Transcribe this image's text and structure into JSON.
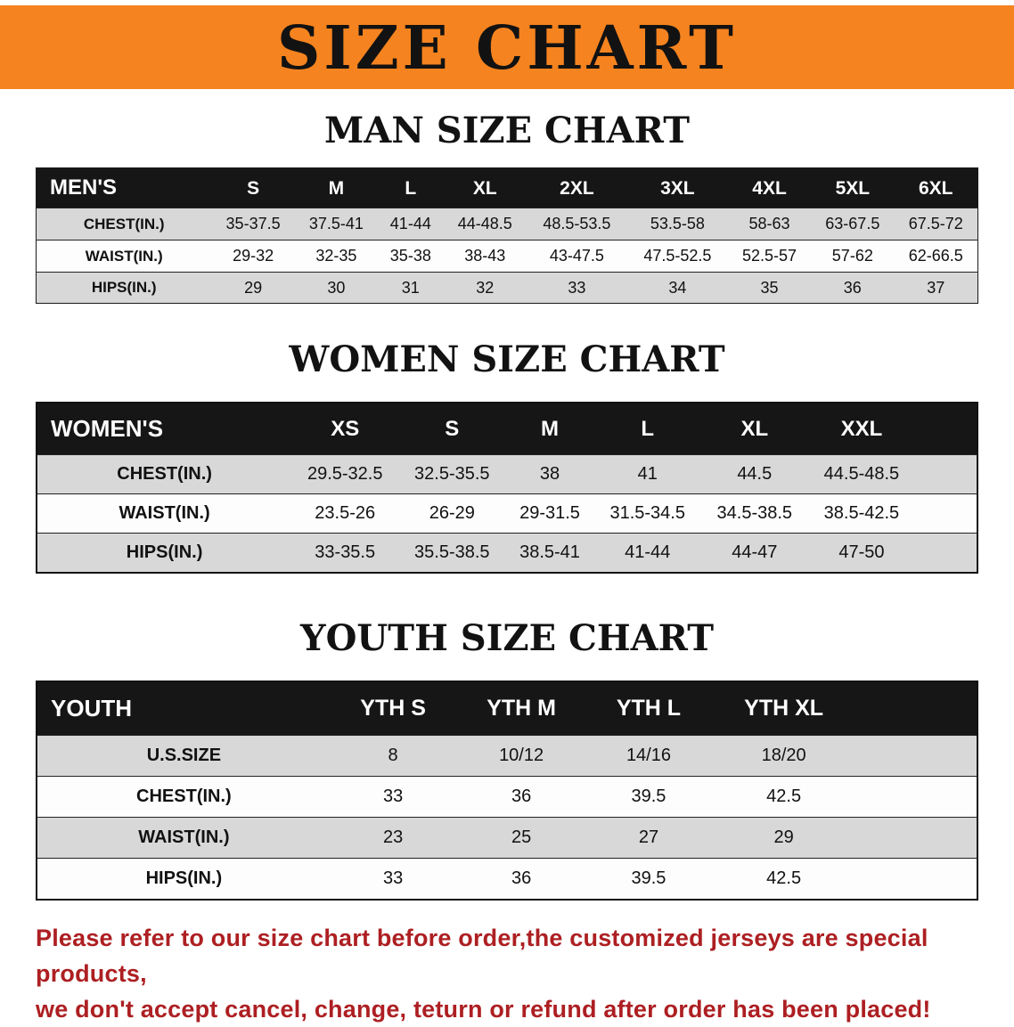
{
  "banner": {
    "title": "SIZE CHART"
  },
  "sections": [
    {
      "id": "men",
      "heading": "MAN SIZE CHART",
      "columns": [
        "MEN'S",
        "S",
        "M",
        "L",
        "XL",
        "2XL",
        "3XL",
        "4XL",
        "5XL",
        "6XL"
      ],
      "rows": [
        [
          "CHEST(IN.)",
          "35-37.5",
          "37.5-41",
          "41-44",
          "44-48.5",
          "48.5-53.5",
          "53.5-58",
          "58-63",
          "63-67.5",
          "67.5-72"
        ],
        [
          "WAIST(IN.)",
          "29-32",
          "32-35",
          "35-38",
          "38-43",
          "43-47.5",
          "47.5-52.5",
          "52.5-57",
          "57-62",
          "62-66.5"
        ],
        [
          "HIPS(IN.)",
          "29",
          "30",
          "31",
          "32",
          "33",
          "34",
          "35",
          "36",
          "37"
        ]
      ]
    },
    {
      "id": "women",
      "heading": "WOMEN SIZE CHART",
      "columns": [
        "WOMEN'S",
        "XS",
        "S",
        "M",
        "L",
        "XL",
        "XXL"
      ],
      "rows": [
        [
          "CHEST(IN.)",
          "29.5-32.5",
          "32.5-35.5",
          "38",
          "41",
          "44.5",
          "44.5-48.5"
        ],
        [
          "WAIST(IN.)",
          "23.5-26",
          "26-29",
          "29-31.5",
          "31.5-34.5",
          "34.5-38.5",
          "38.5-42.5"
        ],
        [
          "HIPS(IN.)",
          "33-35.5",
          "35.5-38.5",
          "38.5-41",
          "41-44",
          "44-47",
          "47-50"
        ]
      ]
    },
    {
      "id": "youth",
      "heading": "YOUTH SIZE CHART",
      "columns": [
        "YOUTH",
        "YTH S",
        "YTH M",
        "YTH L",
        "YTH XL"
      ],
      "rows": [
        [
          "U.S.SIZE",
          "8",
          "10/12",
          "14/16",
          "18/20"
        ],
        [
          "CHEST(IN.)",
          "33",
          "36",
          "39.5",
          "42.5"
        ],
        [
          "WAIST(IN.)",
          "23",
          "25",
          "27",
          "29"
        ],
        [
          "HIPS(IN.)",
          "33",
          "36",
          "39.5",
          "42.5"
        ]
      ]
    }
  ],
  "disclaimer": {
    "line1": "Please refer to our size chart before order,the customized jerseys are special products,",
    "line2": "we don't accept cancel, change, teturn or refund after order has been placed!"
  },
  "colors": {
    "banner_bg": "#F5831F",
    "table_header_bg": "#161616",
    "row_alt": "#d8d8d8",
    "disclaimer_text": "#AD1F22"
  }
}
